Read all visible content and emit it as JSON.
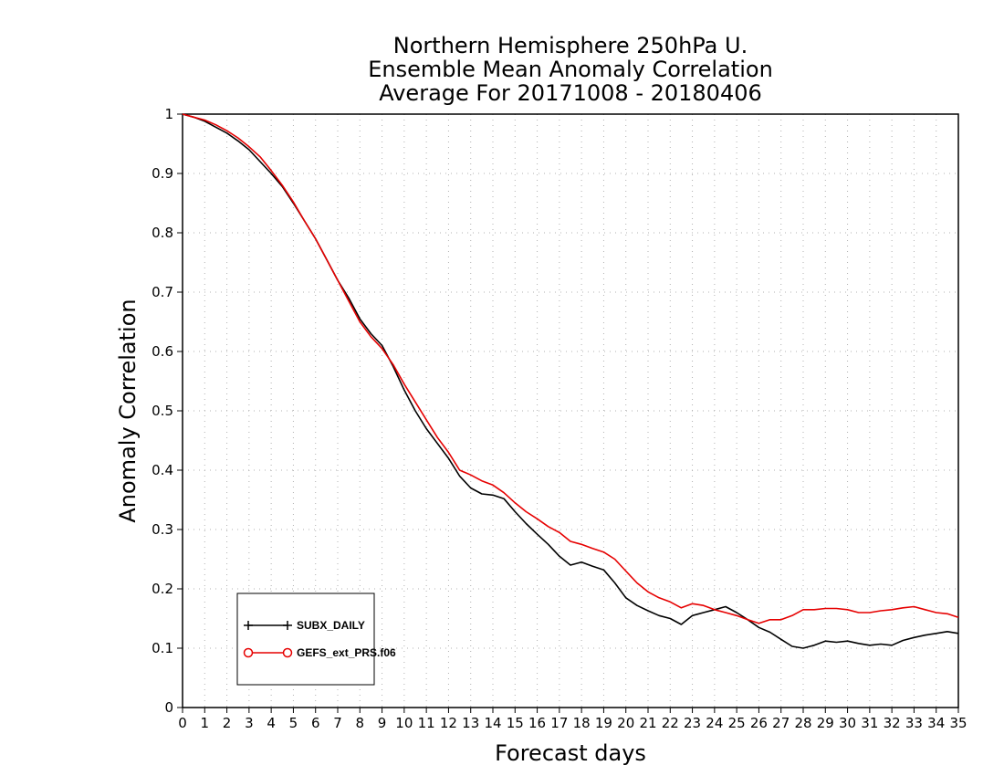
{
  "chart_data": {
    "type": "line",
    "title_lines": [
      "Northern Hemisphere 250hPa U.",
      "Ensemble Mean Anomaly Correlation",
      "Average For 20171008 - 20180406"
    ],
    "xlabel": "Forecast days",
    "ylabel": "Anomaly Correlation",
    "xlim": [
      0,
      35
    ],
    "ylim": [
      0,
      1
    ],
    "grid": true,
    "legend_position": "bottom-left",
    "x_ticks": [
      0,
      1,
      2,
      3,
      4,
      5,
      6,
      7,
      8,
      9,
      10,
      11,
      12,
      13,
      14,
      15,
      16,
      17,
      18,
      19,
      20,
      21,
      22,
      23,
      24,
      25,
      26,
      27,
      28,
      29,
      30,
      31,
      32,
      33,
      34,
      35
    ],
    "y_ticks": [
      0,
      0.1,
      0.2,
      0.3,
      0.4,
      0.5,
      0.6,
      0.7,
      0.8,
      0.9,
      1
    ],
    "series": [
      {
        "name": "SUBX_DAILY",
        "color": "#000000",
        "marker": "plus",
        "x": [
          0,
          0.5,
          1,
          1.5,
          2,
          2.5,
          3,
          3.5,
          4,
          4.5,
          5,
          5.5,
          6,
          6.5,
          7,
          7.5,
          8,
          8.5,
          9,
          9.5,
          10,
          10.5,
          11,
          11.5,
          12,
          12.5,
          13,
          13.5,
          14,
          14.5,
          15,
          15.5,
          16,
          16.5,
          17,
          17.5,
          18,
          18.5,
          19,
          19.5,
          20,
          20.5,
          21,
          21.5,
          22,
          22.5,
          23,
          23.5,
          24,
          24.5,
          25,
          25.5,
          26,
          26.5,
          27,
          27.5,
          28,
          28.5,
          29,
          29.5,
          30,
          30.5,
          31,
          31.5,
          32,
          32.5,
          33,
          33.5,
          34,
          34.5,
          35
        ],
        "values": [
          1.0,
          0.995,
          0.988,
          0.978,
          0.968,
          0.955,
          0.94,
          0.92,
          0.9,
          0.878,
          0.85,
          0.82,
          0.79,
          0.755,
          0.72,
          0.69,
          0.655,
          0.63,
          0.61,
          0.575,
          0.535,
          0.5,
          0.47,
          0.445,
          0.42,
          0.39,
          0.37,
          0.36,
          0.358,
          0.352,
          0.33,
          0.31,
          0.292,
          0.275,
          0.255,
          0.24,
          0.245,
          0.238,
          0.232,
          0.21,
          0.185,
          0.172,
          0.163,
          0.155,
          0.15,
          0.14,
          0.155,
          0.16,
          0.165,
          0.17,
          0.16,
          0.148,
          0.135,
          0.127,
          0.115,
          0.103,
          0.1,
          0.105,
          0.112,
          0.11,
          0.112,
          0.108,
          0.105,
          0.107,
          0.105,
          0.113,
          0.118,
          0.122,
          0.125,
          0.128,
          0.125
        ]
      },
      {
        "name": "GEFS_ext_PRS.f06",
        "color": "#e60000",
        "marker": "circle",
        "x": [
          0,
          0.5,
          1,
          1.5,
          2,
          2.5,
          3,
          3.5,
          4,
          4.5,
          5,
          5.5,
          6,
          6.5,
          7,
          7.5,
          8,
          8.5,
          9,
          9.5,
          10,
          10.5,
          11,
          11.5,
          12,
          12.5,
          13,
          13.5,
          14,
          14.5,
          15,
          15.5,
          16,
          16.5,
          17,
          17.5,
          18,
          18.5,
          19,
          19.5,
          20,
          20.5,
          21,
          21.5,
          22,
          22.5,
          23,
          23.5,
          24,
          24.5,
          25,
          25.5,
          26,
          26.5,
          27,
          27.5,
          28,
          28.5,
          29,
          29.5,
          30,
          30.5,
          31,
          31.5,
          32,
          32.5,
          33,
          33.5,
          34,
          34.5,
          35
        ],
        "values": [
          1.0,
          0.995,
          0.99,
          0.982,
          0.972,
          0.96,
          0.945,
          0.928,
          0.905,
          0.88,
          0.852,
          0.82,
          0.79,
          0.755,
          0.72,
          0.685,
          0.65,
          0.625,
          0.605,
          0.578,
          0.545,
          0.515,
          0.485,
          0.455,
          0.43,
          0.4,
          0.392,
          0.382,
          0.375,
          0.362,
          0.345,
          0.33,
          0.318,
          0.305,
          0.295,
          0.28,
          0.275,
          0.268,
          0.262,
          0.25,
          0.23,
          0.21,
          0.195,
          0.185,
          0.178,
          0.168,
          0.175,
          0.172,
          0.165,
          0.16,
          0.155,
          0.148,
          0.142,
          0.148,
          0.148,
          0.155,
          0.165,
          0.165,
          0.167,
          0.167,
          0.165,
          0.16,
          0.16,
          0.163,
          0.165,
          0.168,
          0.17,
          0.165,
          0.16,
          0.158,
          0.152
        ]
      }
    ]
  }
}
